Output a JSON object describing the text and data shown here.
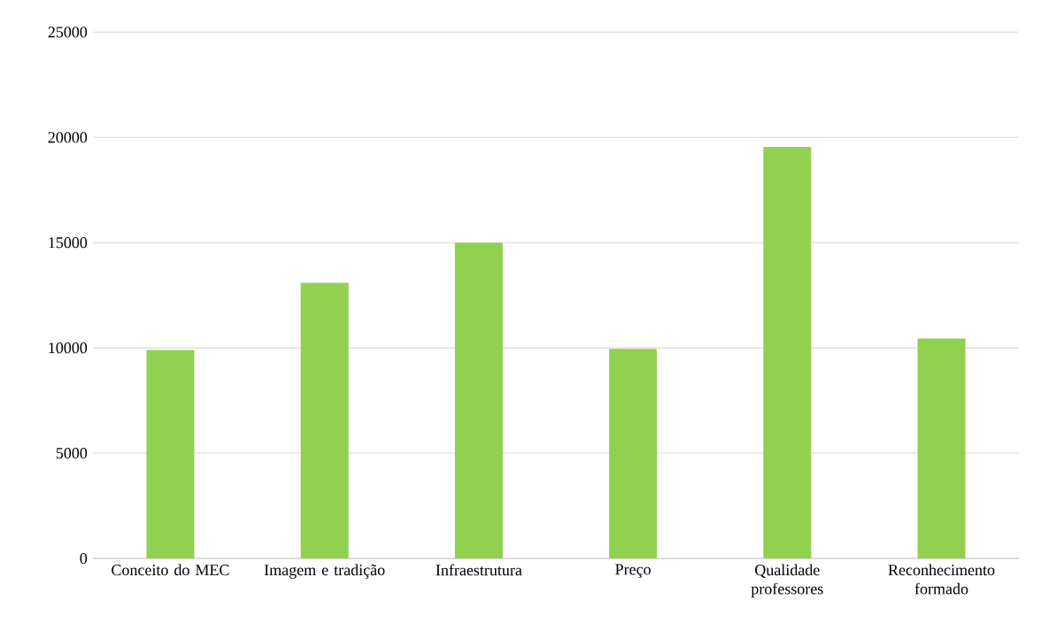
{
  "chart_data": {
    "type": "bar",
    "categories": [
      "Conceito do MEC",
      "Imagem e tradição",
      "Infraestrutura",
      "Preço",
      "Qualidade professores",
      "Reconhecimento formado"
    ],
    "values": [
      9900,
      13100,
      15000,
      9950,
      19550,
      10450
    ],
    "color": "#92d050",
    "ylim": [
      0,
      25000
    ],
    "yticks": [
      0,
      5000,
      10000,
      15000,
      20000,
      25000
    ],
    "grid": "y"
  }
}
